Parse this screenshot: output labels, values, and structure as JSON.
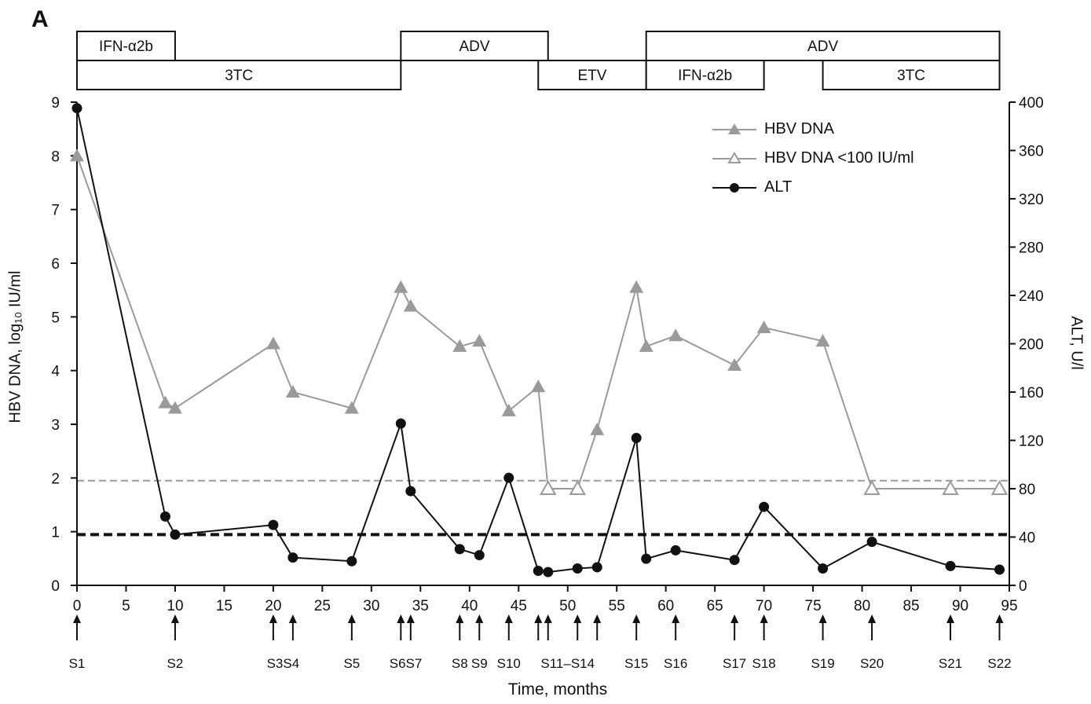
{
  "panel_label": "A",
  "treatments": [
    {
      "label": "IFN-α2b",
      "start": 0,
      "end": 10,
      "row": 0
    },
    {
      "label": "3TC",
      "start": 0,
      "end": 33,
      "row": 1
    },
    {
      "label": "ADV",
      "start": 33,
      "end": 48,
      "row": 0
    },
    {
      "label": "ETV",
      "start": 47,
      "end": 58,
      "row": 1
    },
    {
      "label": "ADV",
      "start": 58,
      "end": 94,
      "row": 0
    },
    {
      "label": "IFN-α2b",
      "start": 58,
      "end": 70,
      "row": 1
    },
    {
      "label": "3TC",
      "start": 76,
      "end": 94,
      "row": 1
    }
  ],
  "samples": [
    {
      "label": "S1",
      "month": 0
    },
    {
      "label": "S2",
      "month": 10
    },
    {
      "label": "S3S4",
      "month": 21,
      "arrows": [
        20,
        22
      ]
    },
    {
      "label": "S5",
      "month": 28
    },
    {
      "label": "S6S7",
      "month": 33.5,
      "arrows": [
        33,
        34
      ]
    },
    {
      "label": "S8",
      "month": 39
    },
    {
      "label": "S9",
      "month": 41
    },
    {
      "label": "S10",
      "month": 44
    },
    {
      "label": "S11–S14",
      "month": 50,
      "arrows": [
        47,
        48,
        51,
        53
      ]
    },
    {
      "label": "S15",
      "month": 57
    },
    {
      "label": "S16",
      "month": 61
    },
    {
      "label": "S17",
      "month": 67
    },
    {
      "label": "S18",
      "month": 70
    },
    {
      "label": "S19",
      "month": 76
    },
    {
      "label": "S20",
      "month": 81
    },
    {
      "label": "S21",
      "month": 89
    },
    {
      "label": "S22",
      "month": 94
    }
  ],
  "chart_data": {
    "type": "line",
    "xlabel": "Time, months",
    "ylabel": "HBV DNA, log₁₀ IU/ml",
    "ylabel_right": "ALT, U/l",
    "xlim": [
      0,
      95
    ],
    "ylim": [
      0,
      9
    ],
    "ylim_right": [
      0,
      400
    ],
    "xticks": [
      0,
      5,
      10,
      15,
      20,
      25,
      30,
      35,
      40,
      45,
      50,
      55,
      60,
      65,
      70,
      75,
      80,
      85,
      90,
      95
    ],
    "yticks": [
      0,
      1,
      2,
      3,
      4,
      5,
      6,
      7,
      8,
      9
    ],
    "yticks_right": [
      0,
      40,
      80,
      120,
      160,
      200,
      240,
      280,
      320,
      360,
      400
    ],
    "legend_position": "top-right",
    "series": [
      {
        "name": "HBV DNA",
        "color": "#9a9a9a",
        "marker": "filled-triangle",
        "axis": "left",
        "x": [
          0,
          9,
          10,
          20,
          22,
          28,
          33,
          34,
          39,
          41,
          44,
          47,
          48,
          51,
          53,
          57,
          58,
          61,
          67,
          70,
          76,
          81,
          89,
          94
        ],
        "y": [
          8.0,
          3.4,
          3.3,
          4.5,
          3.6,
          3.3,
          5.55,
          5.2,
          4.45,
          4.55,
          3.25,
          3.7,
          1.8,
          1.8,
          2.9,
          5.55,
          4.45,
          4.65,
          4.1,
          4.8,
          4.55,
          1.8,
          1.8,
          1.8
        ],
        "below_lod": [
          false,
          false,
          false,
          false,
          false,
          false,
          false,
          false,
          false,
          false,
          false,
          false,
          true,
          true,
          false,
          false,
          false,
          false,
          false,
          false,
          false,
          true,
          true,
          true
        ]
      },
      {
        "name": "HBV DNA <100 IU/ml",
        "color": "#9a9a9a",
        "marker": "open-triangle",
        "axis": "left"
      },
      {
        "name": "ALT",
        "color": "#111111",
        "marker": "filled-circle",
        "axis": "right",
        "x": [
          0,
          9,
          10,
          20,
          22,
          28,
          33,
          34,
          39,
          41,
          44,
          47,
          48,
          51,
          53,
          57,
          58,
          61,
          67,
          70,
          76,
          81,
          89,
          94
        ],
        "y": [
          395,
          57,
          42,
          50,
          23,
          20,
          134,
          78,
          30,
          25,
          89,
          12,
          11,
          14,
          15,
          122,
          22,
          29,
          21,
          65,
          14,
          36,
          16,
          13
        ]
      }
    ],
    "reference_lines": [
      {
        "axis": "left",
        "value": 1.95,
        "color": "#999999",
        "style": "dashed"
      },
      {
        "axis": "right",
        "value": 42,
        "color": "#111111",
        "style": "dashed"
      }
    ]
  }
}
